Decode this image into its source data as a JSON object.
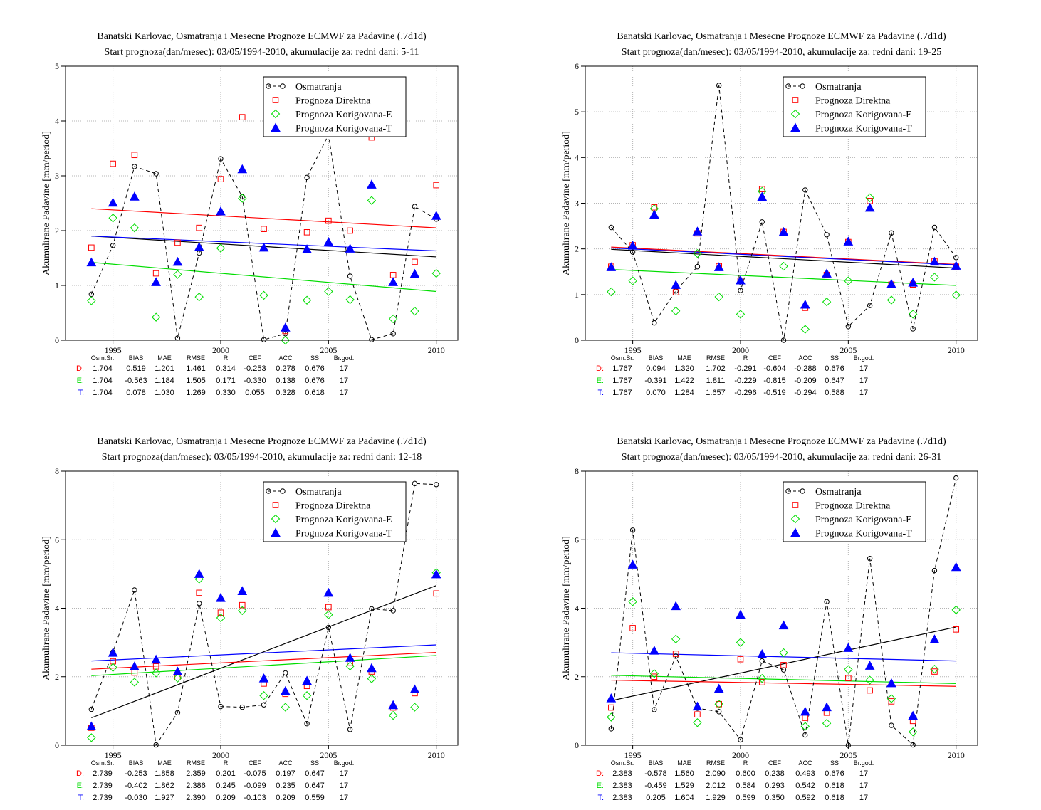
{
  "chart_data": [
    {
      "type": "scatter",
      "title": "Banatski Karlovac, Osmatranja i Mesecne Prognoze ECMWF za Padavine (.7d1d)",
      "subtitle": "Start prognoza(dan/mesec): 03/05/1994-2010, akumulacije za: redni dani: 5-11",
      "ylabel": "Akumulirane Padavine [mm/period]",
      "xlim": [
        1992.8,
        2011.0
      ],
      "ylim": [
        0,
        5
      ],
      "xticks": [
        1995,
        2000,
        2005,
        2010
      ],
      "yticks": [
        0,
        1,
        2,
        3,
        4,
        5
      ],
      "x": [
        1994,
        1995,
        1996,
        1997,
        1998,
        1999,
        2000,
        2001,
        2002,
        2003,
        2004,
        2005,
        2006,
        2007,
        2008,
        2009,
        2010
      ],
      "series": [
        {
          "name": "Osmatranja",
          "color": "#000000",
          "marker": "circle",
          "values": [
            0.84,
            1.73,
            3.17,
            3.04,
            0.04,
            1.59,
            3.31,
            2.62,
            0.01,
            0.12,
            2.97,
            3.75,
            1.17,
            0.01,
            0.12,
            2.44,
            2.21
          ]
        },
        {
          "name": "Prognoza Direktna",
          "color": "#ff0000",
          "marker": "square",
          "values": [
            1.69,
            3.22,
            3.38,
            1.22,
            1.78,
            2.05,
            2.94,
            4.07,
            2.03,
            0.17,
            1.97,
            2.18,
            2.0,
            3.7,
            1.19,
            1.43,
            2.83
          ]
        },
        {
          "name": "Prognoza Korigovana-E",
          "color": "#00dd00",
          "marker": "diamond",
          "values": [
            0.72,
            2.23,
            2.05,
            0.42,
            1.2,
            0.79,
            1.68,
            2.59,
            0.82,
            0.0,
            0.73,
            0.89,
            0.74,
            2.55,
            0.39,
            0.53,
            1.22
          ]
        },
        {
          "name": "Prognoza Korigovana-T",
          "color": "#0000ff",
          "marker": "triangle",
          "values": [
            1.42,
            2.51,
            2.62,
            1.06,
            1.43,
            1.7,
            2.35,
            3.12,
            1.69,
            0.23,
            1.66,
            1.79,
            1.67,
            2.84,
            1.06,
            1.21,
            2.27
          ]
        }
      ],
      "trends": [
        {
          "color": "#000000",
          "y0": 1.9,
          "y1": 1.52
        },
        {
          "color": "#ff0000",
          "y0": 2.4,
          "y1": 2.05
        },
        {
          "color": "#00dd00",
          "y0": 1.42,
          "y1": 0.89
        },
        {
          "color": "#0000ff",
          "y0": 1.9,
          "y1": 1.63
        }
      ],
      "stats_header": [
        "Osm.Sr.",
        "BIAS",
        "MAE",
        "RMSE",
        "R",
        "CEF",
        "ACC",
        "SS",
        "Br.god."
      ],
      "stats": [
        {
          "label": "D:",
          "color": "#ff0000",
          "values": [
            "1.704",
            "0.519",
            "1.201",
            "1.461",
            "0.314",
            "-0.253",
            "0.278",
            "0.676",
            "17"
          ]
        },
        {
          "label": "E:",
          "color": "#00dd00",
          "values": [
            "1.704",
            "-0.563",
            "1.184",
            "1.505",
            "0.171",
            "-0.330",
            "0.138",
            "0.676",
            "17"
          ]
        },
        {
          "label": "T:",
          "color": "#0000ff",
          "values": [
            "1.704",
            "0.078",
            "1.030",
            "1.269",
            "0.330",
            "0.055",
            "0.328",
            "0.618",
            "17"
          ]
        }
      ]
    },
    {
      "type": "scatter",
      "title": "Banatski Karlovac, Osmatranja i Mesecne Prognoze ECMWF za Padavine (.7d1d)",
      "subtitle": "Start prognoza(dan/mesec): 03/05/1994-2010, akumulacije za: redni dani: 19-25",
      "ylabel": "Akumulirane Padavine [mm/period]",
      "xlim": [
        1992.8,
        2011.0
      ],
      "ylim": [
        0,
        6
      ],
      "xticks": [
        1995,
        2000,
        2005,
        2010
      ],
      "yticks": [
        0,
        1,
        2,
        3,
        4,
        5,
        6
      ],
      "x": [
        1994,
        1995,
        1996,
        1997,
        1998,
        1999,
        2000,
        2001,
        2002,
        2003,
        2004,
        2005,
        2006,
        2007,
        2008,
        2009,
        2010
      ],
      "series": [
        {
          "name": "Osmatranja",
          "color": "#000000",
          "marker": "circle",
          "values": [
            2.47,
            1.93,
            0.38,
            1.08,
            1.61,
            5.58,
            1.09,
            2.59,
            0.0,
            3.29,
            2.31,
            0.3,
            0.76,
            2.35,
            0.25,
            2.47,
            1.81
          ]
        },
        {
          "name": "Prognoza Direktna",
          "color": "#ff0000",
          "marker": "square",
          "values": [
            1.61,
            2.08,
            2.91,
            1.05,
            2.34,
            1.62,
            1.3,
            3.31,
            2.37,
            0.71,
            1.43,
            2.15,
            3.05,
            1.22,
            1.22,
            1.73,
            1.61
          ]
        },
        {
          "name": "Prognoza Korigovana-E",
          "color": "#00dd00",
          "marker": "diamond",
          "values": [
            1.06,
            1.3,
            2.88,
            0.64,
            1.9,
            0.95,
            0.57,
            3.26,
            1.62,
            0.24,
            0.84,
            1.3,
            3.12,
            0.88,
            0.57,
            1.38,
            0.99
          ]
        },
        {
          "name": "Prognoza Korigovana-T",
          "color": "#0000ff",
          "marker": "triangle",
          "values": [
            1.6,
            2.07,
            2.75,
            1.21,
            2.38,
            1.6,
            1.31,
            3.14,
            2.37,
            0.78,
            1.46,
            2.16,
            2.9,
            1.23,
            1.26,
            1.72,
            1.63
          ]
        }
      ],
      "trends": [
        {
          "color": "#000000",
          "y0": 1.99,
          "y1": 1.58
        },
        {
          "color": "#ff0000",
          "y0": 2.04,
          "y1": 1.66
        },
        {
          "color": "#00dd00",
          "y0": 1.55,
          "y1": 1.2
        },
        {
          "color": "#0000ff",
          "y0": 2.02,
          "y1": 1.65
        }
      ],
      "stats_header": [
        "Osm.Sr.",
        "BIAS",
        "MAE",
        "RMSE",
        "R",
        "CEF",
        "ACC",
        "SS",
        "Br.god."
      ],
      "stats": [
        {
          "label": "D:",
          "color": "#ff0000",
          "values": [
            "1.767",
            "0.094",
            "1.320",
            "1.702",
            "-0.291",
            "-0.604",
            "-0.288",
            "0.676",
            "17"
          ]
        },
        {
          "label": "E:",
          "color": "#00dd00",
          "values": [
            "1.767",
            "-0.391",
            "1.422",
            "1.811",
            "-0.229",
            "-0.815",
            "-0.209",
            "0.647",
            "17"
          ]
        },
        {
          "label": "T:",
          "color": "#0000ff",
          "values": [
            "1.767",
            "0.070",
            "1.284",
            "1.657",
            "-0.296",
            "-0.519",
            "-0.294",
            "0.588",
            "17"
          ]
        }
      ]
    },
    {
      "type": "scatter",
      "title": "Banatski Karlovac, Osmatranja i Mesecne Prognoze ECMWF za Padavine (.7d1d)",
      "subtitle": "Start prognoza(dan/mesec): 03/05/1994-2010, akumulacije za: redni dani: 12-18",
      "ylabel": "Akumulirane Padavine [mm/period]",
      "xlim": [
        1992.8,
        2011.0
      ],
      "ylim": [
        0,
        8
      ],
      "xticks": [
        1995,
        2000,
        2005,
        2010
      ],
      "yticks": [
        0,
        2,
        4,
        6,
        8
      ],
      "x": [
        1994,
        1995,
        1996,
        1997,
        1998,
        1999,
        2000,
        2001,
        2002,
        2003,
        2004,
        2005,
        2006,
        2007,
        2008,
        2009,
        2010
      ],
      "series": [
        {
          "name": "Osmatranja",
          "color": "#000000",
          "marker": "circle",
          "values": [
            1.05,
            2.72,
            4.53,
            0.01,
            0.95,
            4.14,
            1.13,
            1.11,
            1.18,
            2.11,
            0.63,
            3.44,
            0.46,
            3.98,
            3.93,
            7.64,
            7.61
          ]
        },
        {
          "name": "Prognoza Direktna",
          "color": "#ff0000",
          "marker": "square",
          "values": [
            0.51,
            2.45,
            2.12,
            2.3,
            1.98,
            4.45,
            3.87,
            4.09,
            1.8,
            1.5,
            1.73,
            4.03,
            2.4,
            2.15,
            1.1,
            1.52,
            4.43
          ]
        },
        {
          "name": "Prognoza Korigovana-E",
          "color": "#00dd00",
          "marker": "diamond",
          "values": [
            0.22,
            2.27,
            1.84,
            2.11,
            1.96,
            4.85,
            3.72,
            3.93,
            1.45,
            1.11,
            1.45,
            3.81,
            2.31,
            1.94,
            0.87,
            1.11,
            5.04
          ]
        },
        {
          "name": "Prognoza Korigovana-T",
          "color": "#0000ff",
          "marker": "triangle",
          "values": [
            0.55,
            2.7,
            2.3,
            2.5,
            2.15,
            5.0,
            4.3,
            4.5,
            1.95,
            1.58,
            1.88,
            4.45,
            2.55,
            2.25,
            1.17,
            1.63,
            4.99
          ]
        }
      ],
      "trends": [
        {
          "color": "#000000",
          "y0": 0.8,
          "y1": 4.66
        },
        {
          "color": "#ff0000",
          "y0": 2.22,
          "y1": 2.71
        },
        {
          "color": "#00dd00",
          "y0": 2.03,
          "y1": 2.62
        },
        {
          "color": "#0000ff",
          "y0": 2.46,
          "y1": 2.93
        }
      ],
      "stats_header": [
        "Osm.Sr.",
        "BIAS",
        "MAE",
        "RMSE",
        "R",
        "CEF",
        "ACC",
        "SS",
        "Br.god."
      ],
      "stats": [
        {
          "label": "D:",
          "color": "#ff0000",
          "values": [
            "2.739",
            "-0.253",
            "1.858",
            "2.359",
            "0.201",
            "-0.075",
            "0.197",
            "0.647",
            "17"
          ]
        },
        {
          "label": "E:",
          "color": "#00dd00",
          "values": [
            "2.739",
            "-0.402",
            "1.862",
            "2.386",
            "0.245",
            "-0.099",
            "0.235",
            "0.647",
            "17"
          ]
        },
        {
          "label": "T:",
          "color": "#0000ff",
          "values": [
            "2.739",
            "-0.030",
            "1.927",
            "2.390",
            "0.209",
            "-0.103",
            "0.209",
            "0.559",
            "17"
          ]
        }
      ]
    },
    {
      "type": "scatter",
      "title": "Banatski Karlovac, Osmatranja i Mesecne Prognoze ECMWF za Padavine (.7d1d)",
      "subtitle": "Start prognoza(dan/mesec): 03/05/1994-2010, akumulacije za: redni dani: 26-31",
      "ylabel": "Akumulirane Padavine [mm/period]",
      "xlim": [
        1992.8,
        2011.0
      ],
      "ylim": [
        0,
        8
      ],
      "xticks": [
        1995,
        2000,
        2005,
        2010
      ],
      "yticks": [
        0,
        2,
        4,
        6,
        8
      ],
      "x": [
        1994,
        1995,
        1996,
        1997,
        1998,
        1999,
        2000,
        2001,
        2002,
        2003,
        2004,
        2005,
        2006,
        2007,
        2008,
        2009,
        2010
      ],
      "series": [
        {
          "name": "Osmatranja",
          "color": "#000000",
          "marker": "circle",
          "values": [
            0.48,
            6.28,
            1.04,
            2.6,
            1.08,
            0.98,
            0.16,
            2.46,
            2.2,
            0.3,
            4.19,
            0.0,
            5.45,
            0.58,
            0.01,
            5.1,
            7.8
          ]
        },
        {
          "name": "Prognoza Direktna",
          "color": "#ff0000",
          "marker": "square",
          "values": [
            1.1,
            3.42,
            2.0,
            2.67,
            0.9,
            1.2,
            2.51,
            1.84,
            2.34,
            0.8,
            0.95,
            1.96,
            1.6,
            1.28,
            0.71,
            2.15,
            3.38
          ]
        },
        {
          "name": "Prognoza Korigovana-E",
          "color": "#00dd00",
          "marker": "diamond",
          "values": [
            0.82,
            4.19,
            2.09,
            3.1,
            0.66,
            1.2,
            3.0,
            1.95,
            2.7,
            0.55,
            0.64,
            2.21,
            1.9,
            1.36,
            0.39,
            2.22,
            3.95
          ]
        },
        {
          "name": "Prognoza Korigovana-T",
          "color": "#0000ff",
          "marker": "triangle",
          "values": [
            1.37,
            5.27,
            2.76,
            4.06,
            1.13,
            1.65,
            3.81,
            2.66,
            3.5,
            0.98,
            1.11,
            2.84,
            2.32,
            1.81,
            0.86,
            3.09,
            5.2
          ]
        }
      ],
      "trends": [
        {
          "color": "#000000",
          "y0": 1.3,
          "y1": 3.45
        },
        {
          "color": "#ff0000",
          "y0": 1.9,
          "y1": 1.72
        },
        {
          "color": "#00dd00",
          "y0": 2.04,
          "y1": 1.8
        },
        {
          "color": "#0000ff",
          "y0": 2.7,
          "y1": 2.46
        }
      ],
      "stats_header": [
        "Osm.Sr.",
        "BIAS",
        "MAE",
        "RMSE",
        "R",
        "CEF",
        "ACC",
        "SS",
        "Br.god."
      ],
      "stats": [
        {
          "label": "D:",
          "color": "#ff0000",
          "values": [
            "2.383",
            "-0.578",
            "1.560",
            "2.090",
            "0.600",
            "0.238",
            "0.493",
            "0.676",
            "17"
          ]
        },
        {
          "label": "E:",
          "color": "#00dd00",
          "values": [
            "2.383",
            "-0.459",
            "1.529",
            "2.012",
            "0.584",
            "0.293",
            "0.542",
            "0.618",
            "17"
          ]
        },
        {
          "label": "T:",
          "color": "#0000ff",
          "values": [
            "2.383",
            "0.205",
            "1.604",
            "1.929",
            "0.599",
            "0.350",
            "0.592",
            "0.618",
            "17"
          ]
        }
      ]
    }
  ]
}
